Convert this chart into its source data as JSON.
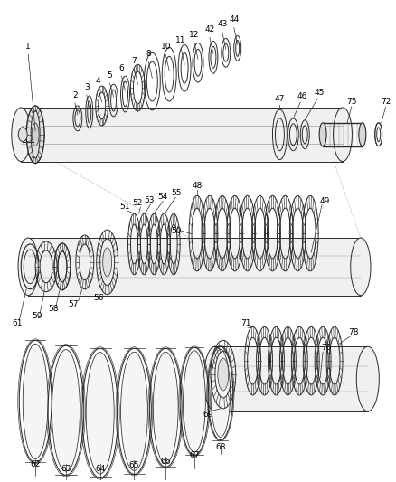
{
  "bg": "#ffffff",
  "lc": "#2a2a2a",
  "lw": 0.7,
  "fs": 6.5,
  "fig_w": 4.39,
  "fig_h": 5.33,
  "dpi": 100
}
